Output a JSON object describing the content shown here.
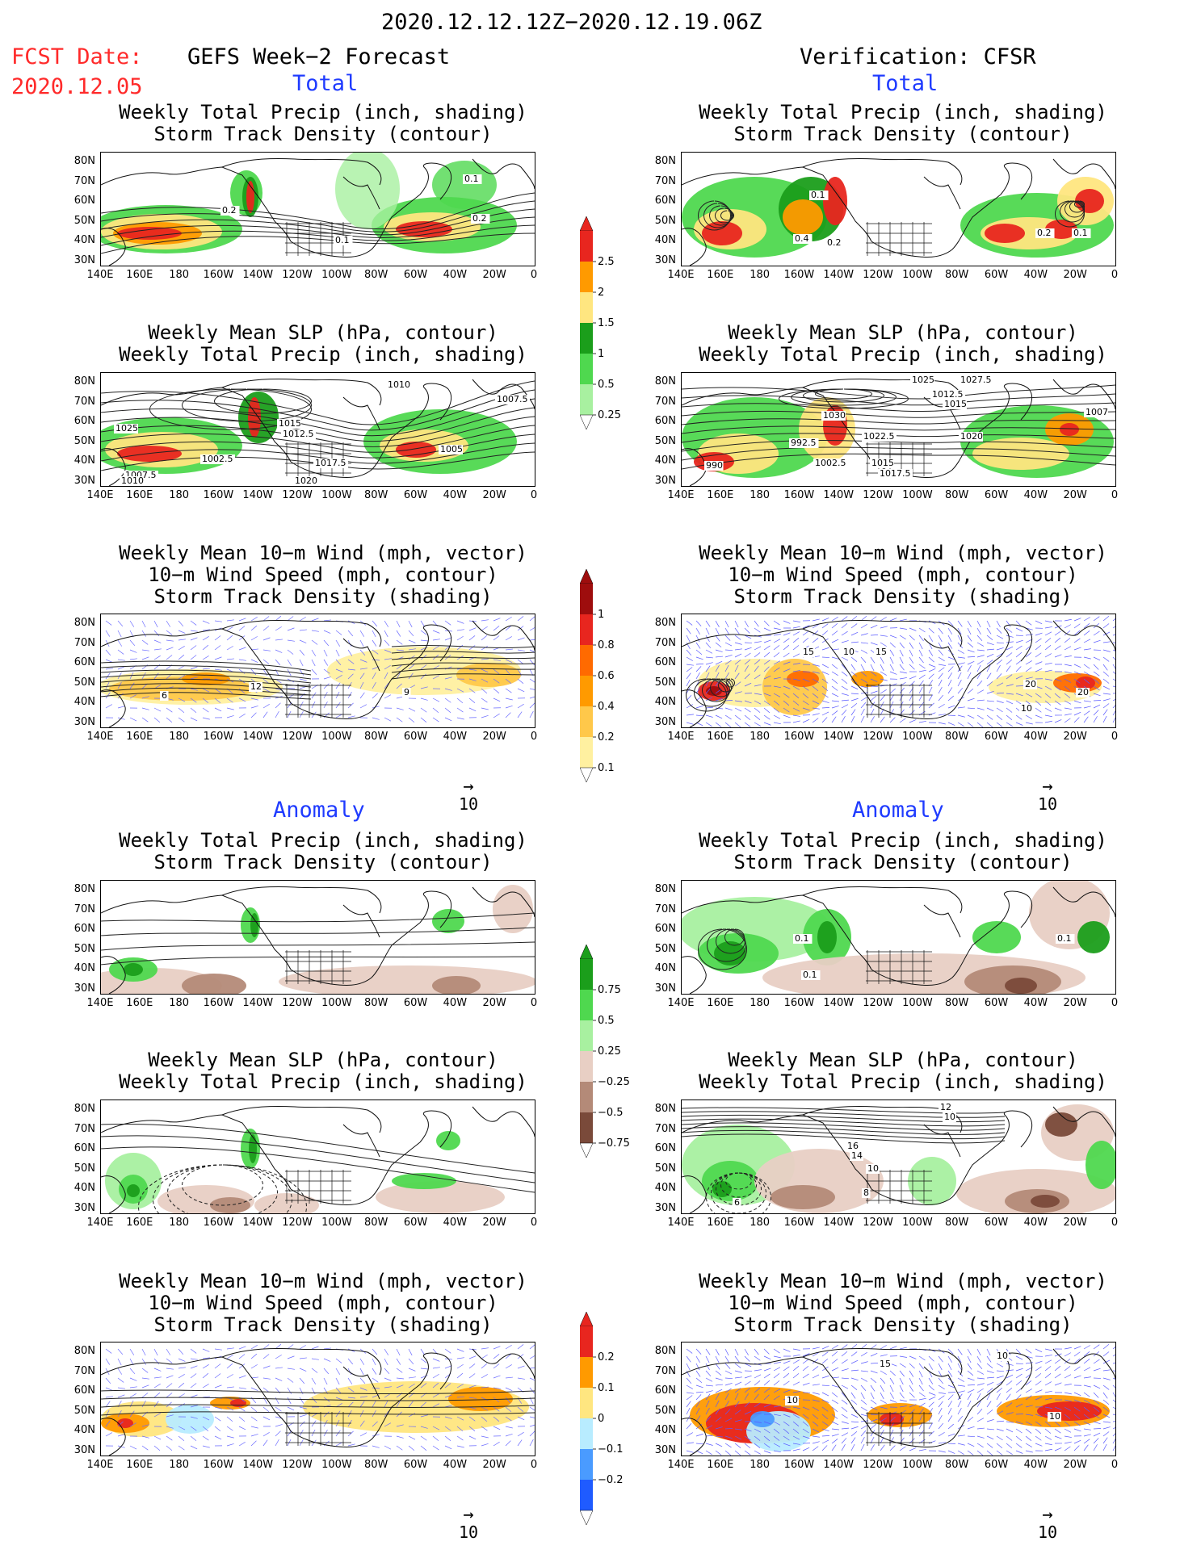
{
  "header": {
    "period": "2020.12.12.12Z−2020.12.19.06Z",
    "fcst_label": "FCST Date:",
    "fcst_date": "2020.12.05",
    "left_title": "GEFS Week−2 Forecast",
    "right_title": "Verification: CFSR",
    "total_label": "Total",
    "anomaly_label": "Anomaly"
  },
  "panel_titles": {
    "precip_storm": [
      "Weekly Total Precip (inch, shading)",
      "Storm Track Density (contour)"
    ],
    "slp_precip": [
      "Weekly Mean SLP (hPa, contour)",
      "Weekly Total Precip (inch, shading)"
    ],
    "wind_storm": [
      "Weekly Mean 10−m Wind (mph, vector)",
      "10−m Wind Speed (mph, contour)",
      "Storm Track Density (shading)"
    ]
  },
  "axes": {
    "lat_labels": [
      "80N",
      "70N",
      "60N",
      "50N",
      "40N",
      "30N"
    ],
    "lon_labels": [
      "140E",
      "160E",
      "180",
      "160W",
      "140W",
      "120W",
      "100W",
      "80W",
      "60W",
      "40W",
      "20W",
      "0"
    ]
  },
  "vector_ref": "10",
  "colorbars": {
    "total_precip": {
      "labels": [
        "2.5",
        "2",
        "1.5",
        "1",
        "0.5",
        "0.25"
      ],
      "colors": [
        "#e8261f",
        "#ff9a00",
        "#ffe680",
        "#1b9e1b",
        "#4fd84f",
        "#a8f0a0"
      ]
    },
    "storm_density": {
      "labels": [
        "1",
        "0.8",
        "0.6",
        "0.4",
        "0.2",
        "0.1"
      ],
      "colors": [
        "#9e0d0d",
        "#e8261f",
        "#ff6a00",
        "#ff9a00",
        "#ffc84a",
        "#fff0a0"
      ]
    },
    "precip_anom": {
      "labels": [
        "0.75",
        "0.5",
        "0.25",
        "−0.25",
        "−0.5",
        "−0.75"
      ],
      "colors": [
        "#1b9e1b",
        "#4fd84f",
        "#a8f0a0",
        "#e8cfc4",
        "#b48a78",
        "#7a4a3a"
      ]
    },
    "storm_anom": {
      "labels": [
        "0.2",
        "0.1",
        "0",
        "−0.1",
        "−0.2"
      ],
      "colors": [
        "#e8261f",
        "#ff9a00",
        "#ffe680",
        "#b8ecff",
        "#4a9bff",
        "#1f5bff"
      ]
    }
  },
  "contour_labels": {
    "fc_precip_total": [
      "0.1",
      "0.2",
      "0.2",
      "0.1"
    ],
    "fc_slp_total": [
      "1010",
      "1007.5",
      "1025",
      "1015",
      "1012.5",
      "1002.5",
      "1017.5",
      "1020",
      "1005",
      "1007.5",
      "1010"
    ],
    "fc_wind_total": [
      "12",
      "6",
      "9"
    ],
    "vf_precip_total": [
      "0.1",
      "0.4",
      "0.2",
      "0.2",
      "0.1"
    ],
    "vf_slp_total": [
      "1025",
      "1027.5",
      "1012.5",
      "1015",
      "1030",
      "1007",
      "992.5",
      "1022.5",
      "1020",
      "990",
      "1002.5",
      "1015",
      "1017.5"
    ],
    "vf_wind_total": [
      "15",
      "10",
      "15",
      "20",
      "20",
      "10"
    ],
    "vf_precip_anom": [
      "0.1",
      "0.1",
      "0.1"
    ],
    "vf_slp_anom": [
      "12",
      "10",
      "16",
      "14",
      "10",
      "8",
      "6"
    ],
    "vf_wind_anom": [
      "15",
      "10",
      "10",
      "10"
    ]
  }
}
